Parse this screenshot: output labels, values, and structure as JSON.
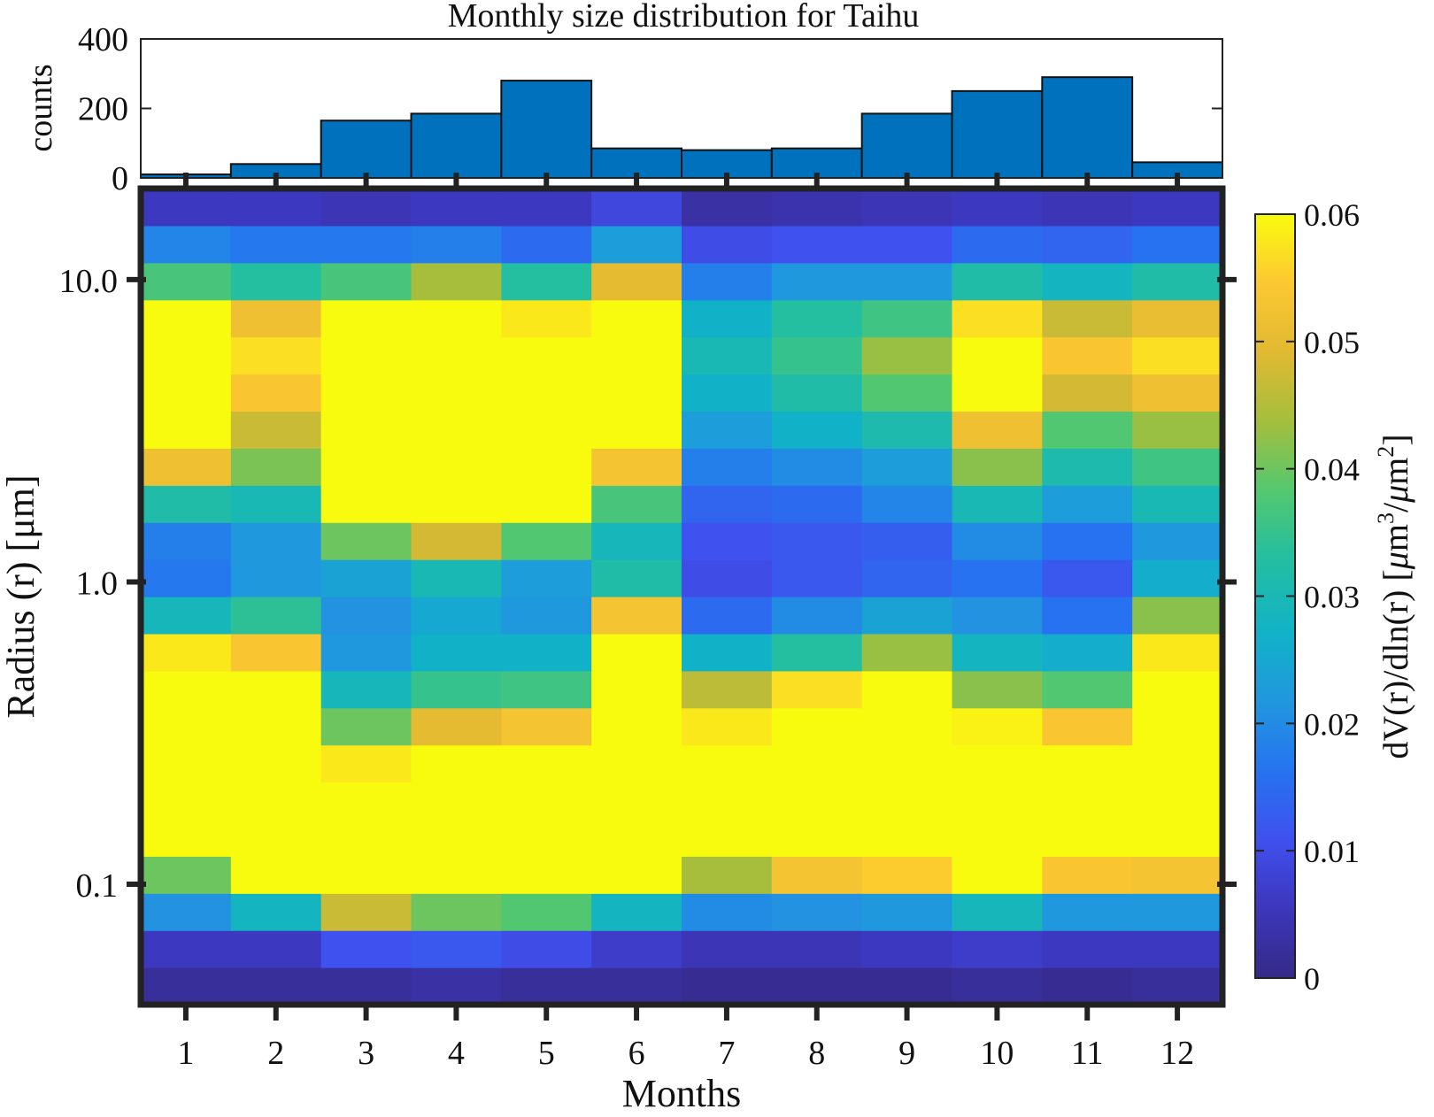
{
  "chart_data": [
    {
      "type": "bar",
      "title": "Monthly size distribution for Taihu",
      "ylabel": "counts",
      "xlabel": "",
      "categories": [
        "1",
        "2",
        "3",
        "4",
        "5",
        "6",
        "7",
        "8",
        "9",
        "10",
        "11",
        "12"
      ],
      "values": [
        10,
        40,
        165,
        185,
        280,
        85,
        80,
        85,
        185,
        250,
        290,
        45
      ],
      "ylim": [
        0,
        400
      ],
      "yticks": [
        "0",
        "200",
        "400"
      ],
      "bar_color": "#0072BD"
    },
    {
      "type": "heatmap",
      "xlabel": "Months",
      "ylabel": "Radius (r) [μm]",
      "x": [
        "1",
        "2",
        "3",
        "4",
        "5",
        "6",
        "7",
        "8",
        "9",
        "10",
        "11",
        "12"
      ],
      "ytick_labels": [
        "0.1",
        "1.0",
        "10.0"
      ],
      "ytick_values": [
        0.1,
        1.0,
        10.0
      ],
      "y_radius_log_range": [
        0.04,
        20
      ],
      "bins_bottom_to_top": 22,
      "z_bottom_to_top": [
        [
          0.002,
          0.002,
          0.002,
          0.003,
          0.002,
          0.002,
          0.001,
          0.001,
          0.001,
          0.002,
          0.001,
          0.002
        ],
        [
          0.006,
          0.006,
          0.011,
          0.012,
          0.01,
          0.007,
          0.005,
          0.005,
          0.006,
          0.007,
          0.006,
          0.006
        ],
        [
          0.021,
          0.028,
          0.047,
          0.04,
          0.038,
          0.028,
          0.02,
          0.021,
          0.022,
          0.029,
          0.022,
          0.022
        ],
        [
          0.04,
          0.06,
          0.06,
          0.06,
          0.06,
          0.06,
          0.044,
          0.053,
          0.055,
          0.06,
          0.054,
          0.053
        ],
        [
          0.06,
          0.06,
          0.06,
          0.06,
          0.06,
          0.06,
          0.06,
          0.06,
          0.06,
          0.06,
          0.06,
          0.06
        ],
        [
          0.06,
          0.06,
          0.06,
          0.06,
          0.06,
          0.06,
          0.06,
          0.06,
          0.06,
          0.06,
          0.06,
          0.06
        ],
        [
          0.06,
          0.06,
          0.058,
          0.06,
          0.06,
          0.06,
          0.06,
          0.06,
          0.06,
          0.06,
          0.06,
          0.06
        ],
        [
          0.06,
          0.06,
          0.04,
          0.05,
          0.053,
          0.06,
          0.058,
          0.06,
          0.06,
          0.059,
          0.054,
          0.06
        ],
        [
          0.06,
          0.06,
          0.029,
          0.035,
          0.036,
          0.06,
          0.046,
          0.057,
          0.06,
          0.042,
          0.038,
          0.06
        ],
        [
          0.058,
          0.054,
          0.022,
          0.027,
          0.027,
          0.06,
          0.027,
          0.033,
          0.043,
          0.028,
          0.026,
          0.058
        ],
        [
          0.029,
          0.034,
          0.021,
          0.025,
          0.022,
          0.053,
          0.015,
          0.02,
          0.024,
          0.021,
          0.016,
          0.042
        ],
        [
          0.017,
          0.022,
          0.024,
          0.03,
          0.023,
          0.032,
          0.01,
          0.012,
          0.014,
          0.016,
          0.012,
          0.026
        ],
        [
          0.018,
          0.022,
          0.04,
          0.048,
          0.038,
          0.029,
          0.011,
          0.012,
          0.013,
          0.02,
          0.016,
          0.022
        ],
        [
          0.032,
          0.03,
          0.06,
          0.06,
          0.06,
          0.037,
          0.014,
          0.015,
          0.019,
          0.03,
          0.023,
          0.03
        ],
        [
          0.052,
          0.041,
          0.06,
          0.06,
          0.06,
          0.053,
          0.018,
          0.02,
          0.023,
          0.042,
          0.031,
          0.036
        ],
        [
          0.06,
          0.047,
          0.06,
          0.06,
          0.06,
          0.06,
          0.023,
          0.027,
          0.031,
          0.052,
          0.038,
          0.043
        ],
        [
          0.06,
          0.054,
          0.06,
          0.06,
          0.06,
          0.06,
          0.027,
          0.032,
          0.038,
          0.06,
          0.048,
          0.052
        ],
        [
          0.06,
          0.057,
          0.06,
          0.06,
          0.06,
          0.06,
          0.03,
          0.035,
          0.043,
          0.06,
          0.054,
          0.057
        ],
        [
          0.06,
          0.052,
          0.06,
          0.06,
          0.058,
          0.06,
          0.027,
          0.033,
          0.036,
          0.057,
          0.047,
          0.051
        ],
        [
          0.037,
          0.033,
          0.037,
          0.044,
          0.033,
          0.05,
          0.018,
          0.022,
          0.022,
          0.032,
          0.028,
          0.032
        ],
        [
          0.019,
          0.017,
          0.017,
          0.018,
          0.015,
          0.023,
          0.01,
          0.011,
          0.011,
          0.015,
          0.014,
          0.016
        ],
        [
          0.006,
          0.006,
          0.005,
          0.006,
          0.006,
          0.009,
          0.003,
          0.004,
          0.005,
          0.006,
          0.005,
          0.006
        ]
      ],
      "colorbar": {
        "label": "dV(r)/dln(r) [μm³/μm²]",
        "label_parts": [
          "dV(r)/dln(r) [",
          "μ",
          "m",
          "3",
          "/",
          "μ",
          "m",
          "2",
          "]"
        ],
        "range": [
          0,
          0.06
        ],
        "ticks": [
          "0",
          "0.01",
          "0.02",
          "0.03",
          "0.04",
          "0.05",
          "0.06"
        ],
        "colormap": "parula"
      }
    }
  ]
}
